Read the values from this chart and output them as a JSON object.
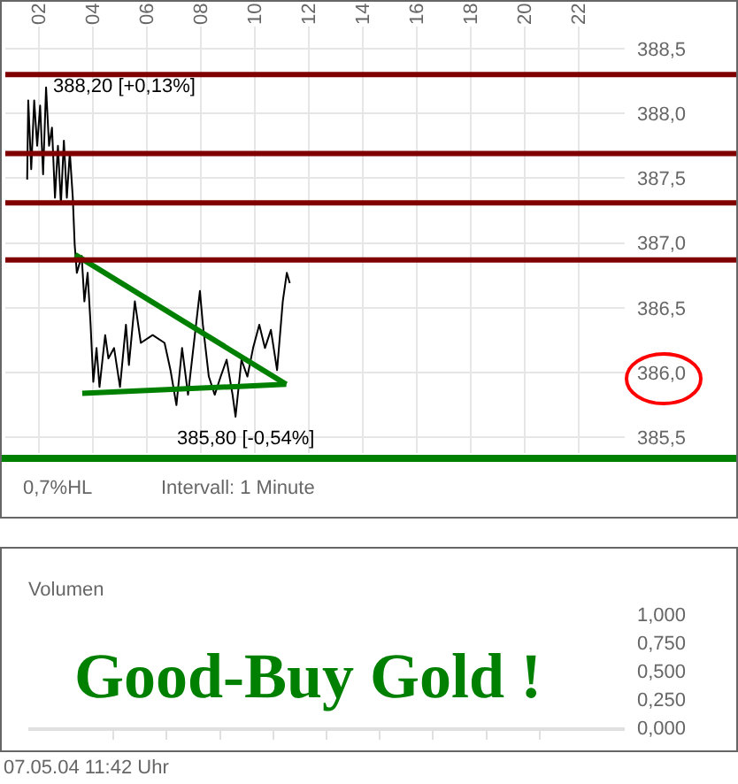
{
  "chart_data": [
    {
      "type": "line",
      "xlim": [
        0.75,
        23.7
      ],
      "xticks": [
        {
          "value": 2,
          "label": "02"
        },
        {
          "value": 4,
          "label": "04"
        },
        {
          "value": 6,
          "label": "06"
        },
        {
          "value": 8,
          "label": "08"
        },
        {
          "value": 10,
          "label": "10"
        },
        {
          "value": 12,
          "label": "12"
        },
        {
          "value": 14,
          "label": "14"
        },
        {
          "value": 16,
          "label": "16"
        },
        {
          "value": 18,
          "label": "18"
        },
        {
          "value": 20,
          "label": "20"
        },
        {
          "value": 22,
          "label": "22"
        }
      ],
      "ylim": [
        385.38,
        388.67
      ],
      "yticks": [
        {
          "value": 385.5,
          "label": "385,5"
        },
        {
          "value": 386,
          "label": "386,0"
        },
        {
          "value": 386.5,
          "label": "386,5"
        },
        {
          "value": 387,
          "label": "387,0"
        },
        {
          "value": 387.5,
          "label": "387,5"
        },
        {
          "value": 388,
          "label": "388,0"
        },
        {
          "value": 388.5,
          "label": "388,5"
        }
      ],
      "grid": true,
      "series": [
        {
          "color": "#000000",
          "x": [
            1.56,
            1.6,
            1.71,
            1.82,
            1.93,
            2.04,
            2.15,
            2.26,
            2.37,
            2.48,
            2.59,
            2.7,
            2.81,
            2.92,
            3.03,
            3.14,
            3.25,
            3.32,
            3.4,
            3.58,
            3.68,
            3.8,
            3.91,
            4.01,
            4.13,
            4.24,
            4.45,
            4.57,
            4.78,
            5.0,
            5.22,
            5.33,
            5.55,
            5.77,
            6.21,
            6.65,
            6.87,
            7.09,
            7.3,
            7.52,
            7.74,
            7.96,
            8.07,
            8.29,
            8.51,
            8.73,
            8.95,
            9.17,
            9.28,
            9.5,
            9.72,
            9.93,
            10.16,
            10.37,
            10.59,
            10.82,
            11.03,
            11.18,
            11.29
          ],
          "values": [
            387.49,
            388.1,
            387.57,
            388.1,
            387.75,
            388.06,
            387.53,
            388.2,
            387.75,
            387.89,
            387.35,
            387.75,
            387.3,
            387.79,
            387.35,
            387.7,
            387.35,
            386.99,
            386.77,
            386.9,
            386.55,
            386.77,
            386.37,
            385.93,
            386.19,
            385.89,
            386.29,
            386.11,
            386.19,
            385.89,
            386.37,
            386.06,
            386.55,
            386.23,
            386.29,
            386.23,
            386.02,
            385.75,
            386.19,
            385.83,
            386.23,
            386.63,
            386.37,
            385.97,
            385.83,
            385.97,
            386.1,
            385.83,
            385.66,
            386.1,
            385.97,
            386.19,
            386.37,
            386.19,
            386.33,
            386.02,
            386.55,
            386.77,
            386.69
          ]
        },
        {
          "color": "#008000",
          "x": [
            3.34,
            11.16
          ],
          "values": [
            386.91,
            385.91
          ]
        },
        {
          "color": "#008000",
          "x": [
            3.6,
            11.16
          ],
          "values": [
            385.84,
            385.91
          ]
        }
      ],
      "ref_lines": [
        {
          "axis": "y",
          "value": 388.3,
          "color": "#800000"
        },
        {
          "axis": "y",
          "value": 387.69,
          "color": "#800000"
        },
        {
          "axis": "y",
          "value": 387.31,
          "color": "#800000"
        },
        {
          "axis": "y",
          "value": 386.87,
          "color": "#800000"
        }
      ],
      "annotations": [
        {
          "text": "388,20 [+0,13%]",
          "x": 2.26,
          "y": 388.2
        },
        "385,80 [-0,54%]",
        "0,7%HL",
        "Intervall: 1 Minute"
      ]
    },
    {
      "type": "bar",
      "title": "Volumen",
      "categories": [
        null,
        null,
        null,
        null,
        null,
        null,
        null,
        null,
        null,
        null
      ],
      "values": [
        0,
        0,
        0,
        0,
        0,
        0,
        0,
        0,
        0,
        0
      ],
      "tick_labels": "y",
      "grid": false,
      "ylim": [
        0,
        1
      ],
      "yticks": [
        {
          "value": 0,
          "label": "0,000"
        },
        {
          "value": 0.25,
          "label": "0,250"
        },
        {
          "value": 0.5,
          "label": "0,500"
        },
        {
          "value": 0.75,
          "label": "0,750"
        },
        {
          "value": 1,
          "label": "1,000"
        }
      ],
      "annotations": [
        "Good-Buy Gold !",
        "07.05.04 11:42 Uhr"
      ]
    }
  ]
}
